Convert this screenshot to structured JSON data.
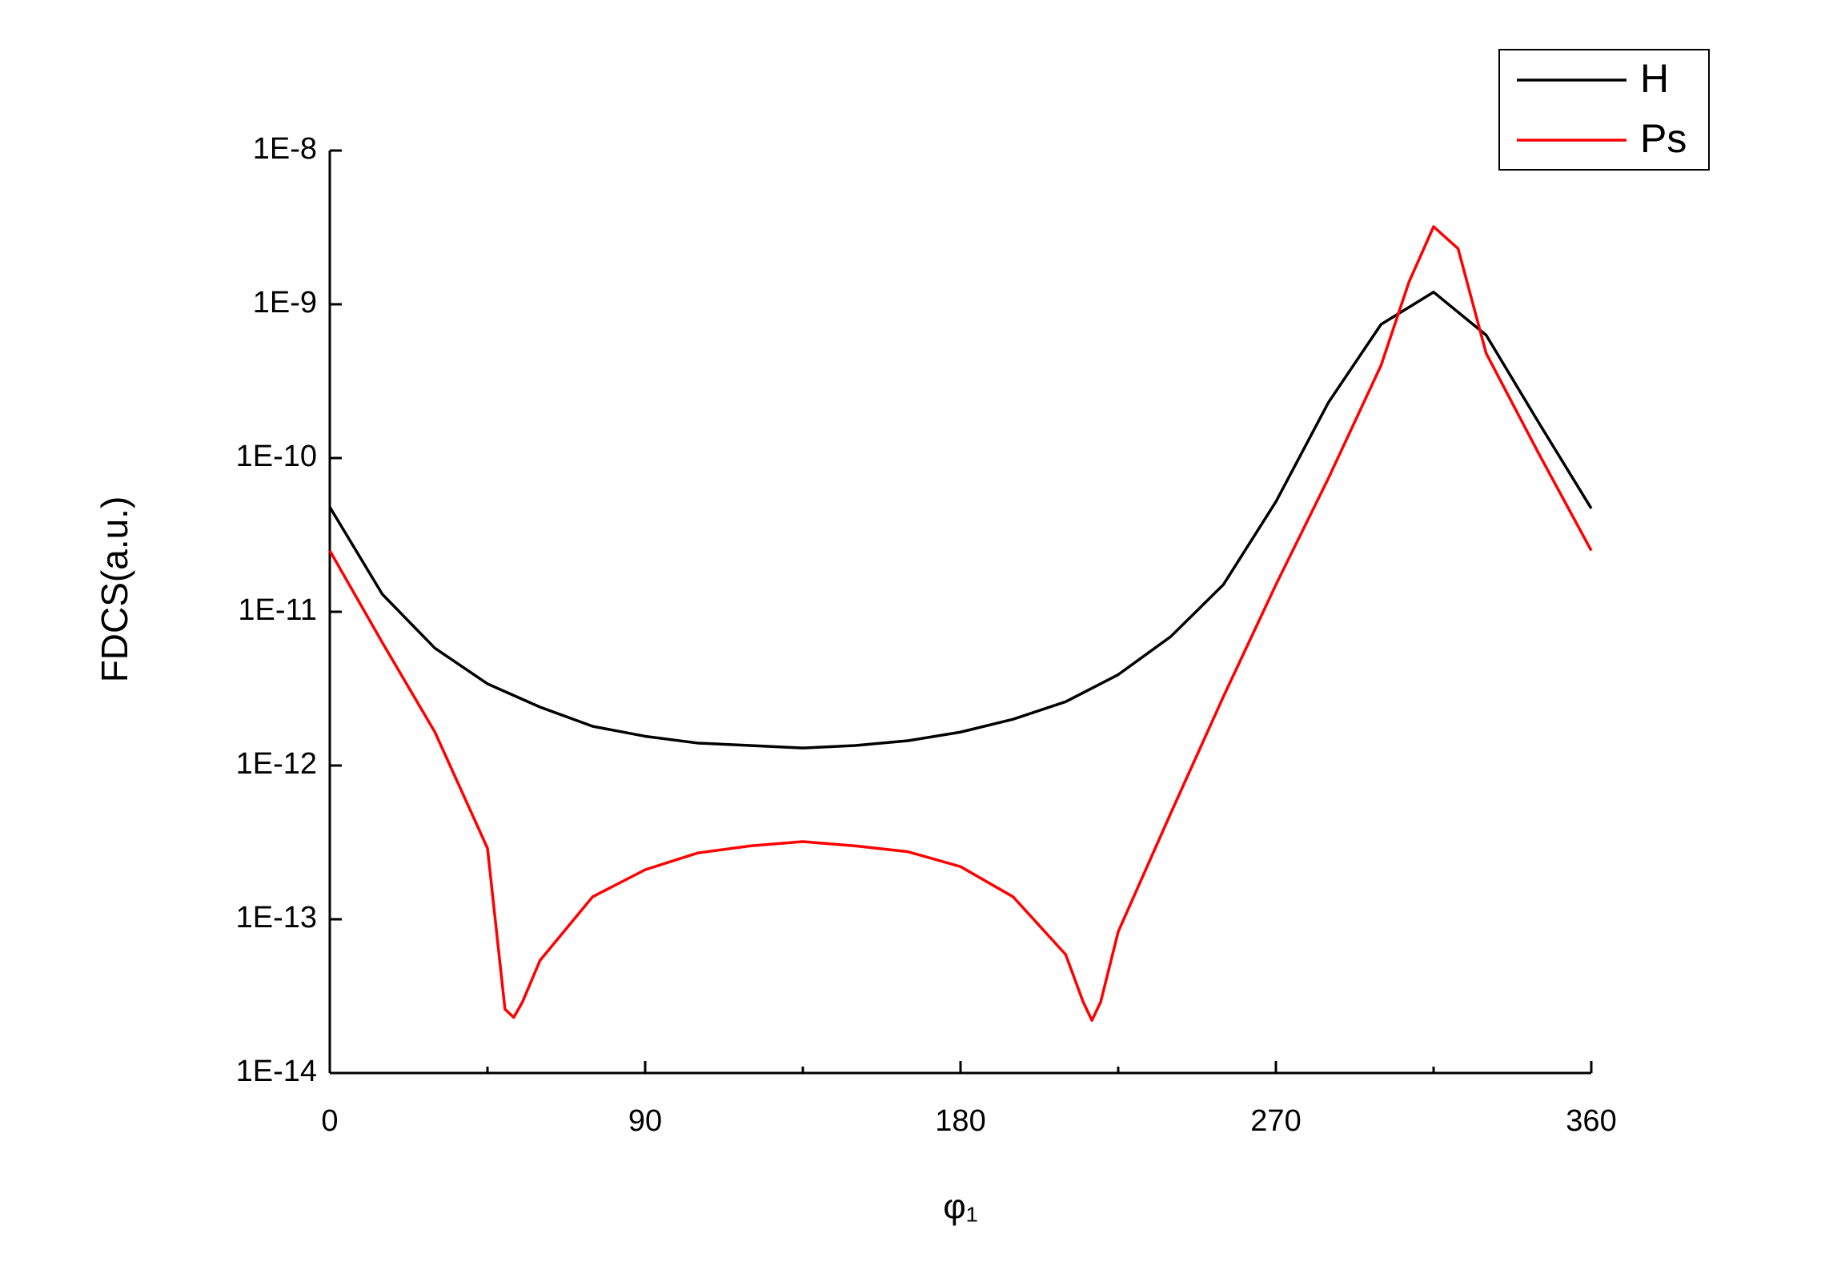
{
  "chart_data": {
    "type": "line",
    "xlabel": "φ₁",
    "ylabel": "FDCS(a.u.)",
    "xlim": [
      0,
      360
    ],
    "xticks": [
      0,
      90,
      180,
      270,
      360
    ],
    "xminorticks": [
      45,
      135,
      225,
      315
    ],
    "ylim": [
      1e-14,
      1e-08
    ],
    "ylog": true,
    "yticks": [
      {
        "value": 1e-14,
        "label": "1E-14"
      },
      {
        "value": 1e-13,
        "label": "1E-13"
      },
      {
        "value": 1e-12,
        "label": "1E-12"
      },
      {
        "value": 1e-11,
        "label": "1E-11"
      },
      {
        "value": 1e-10,
        "label": "1E-10"
      },
      {
        "value": 1e-09,
        "label": "1E-9"
      },
      {
        "value": 1e-08,
        "label": "1E-8"
      }
    ],
    "legend": "top-right",
    "series": [
      {
        "name": "H",
        "color": "#000000",
        "x": [
          0,
          15,
          30,
          45,
          60,
          75,
          90,
          105,
          120,
          135,
          150,
          165,
          180,
          195,
          210,
          225,
          240,
          255,
          270,
          285,
          300,
          315,
          330,
          345,
          360
        ],
        "values": [
          4.8e-11,
          1.3e-11,
          5.8e-12,
          3.4e-12,
          2.4e-12,
          1.8e-12,
          1.55e-12,
          1.4e-12,
          1.35e-12,
          1.3e-12,
          1.35e-12,
          1.45e-12,
          1.65e-12,
          2e-12,
          2.6e-12,
          3.9e-12,
          6.9e-12,
          1.5e-11,
          5.2e-11,
          2.3e-10,
          7.4e-10,
          1.2e-09,
          6.3e-10,
          1.7e-10,
          4.7e-11
        ]
      },
      {
        "name": "Ps",
        "color": "#ff0000",
        "x": [
          0,
          15,
          30,
          45,
          50,
          52.5,
          55,
          60,
          75,
          90,
          105,
          120,
          135,
          150,
          165,
          180,
          195,
          210,
          215,
          217.5,
          220,
          225,
          240,
          255,
          270,
          285,
          300,
          308,
          315,
          322,
          330,
          345,
          360
        ],
        "values": [
          2.5e-11,
          6.3e-12,
          1.65e-12,
          2.9e-13,
          2.6e-14,
          2.3e-14,
          2.9e-14,
          5.4e-14,
          1.4e-13,
          2.1e-13,
          2.7e-13,
          3e-13,
          3.2e-13,
          3e-13,
          2.75e-13,
          2.2e-13,
          1.4e-13,
          5.9e-14,
          2.9e-14,
          2.2e-14,
          2.9e-14,
          8.3e-14,
          4.9e-13,
          2.8e-12,
          1.5e-11,
          7.4e-11,
          4e-10,
          1.4e-09,
          3.2e-09,
          2.3e-09,
          4.8e-10,
          1.07e-10,
          2.5e-11
        ]
      }
    ]
  }
}
